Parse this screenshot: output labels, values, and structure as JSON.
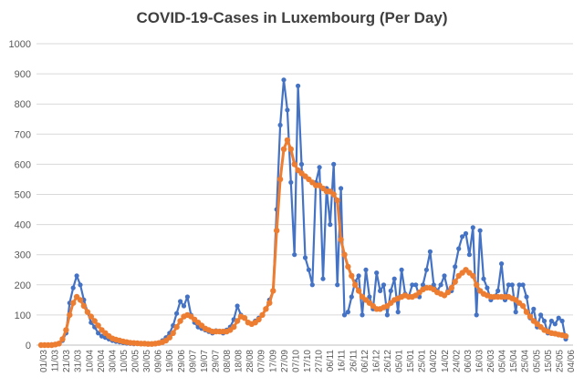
{
  "chart_data": {
    "type": "line",
    "title": "COVID-19-Cases in Luxembourg (Per Day)",
    "xlabel": "",
    "ylabel": "",
    "ylim": [
      0,
      1000
    ],
    "y_ticks": [
      0,
      100,
      200,
      300,
      400,
      500,
      600,
      700,
      800,
      900,
      1000
    ],
    "x_tick_labels": [
      "01/03",
      "11/03",
      "21/03",
      "31/03",
      "10/04",
      "20/04",
      "30/04",
      "10/05",
      "20/05",
      "30/05",
      "09/06",
      "19/06",
      "29/06",
      "09/07",
      "19/07",
      "29/07",
      "08/08",
      "18/08",
      "28/08",
      "07/09",
      "17/09",
      "27/09",
      "07/10",
      "17/10",
      "27/10",
      "06/11",
      "16/11",
      "26/11",
      "06/12",
      "16/12",
      "26/12",
      "05/01",
      "15/01",
      "25/01",
      "04/02",
      "14/02",
      "24/02",
      "06/03",
      "16/03",
      "26/03",
      "05/04",
      "15/04",
      "25/04",
      "05/05",
      "15/05",
      "25/05",
      "04/06"
    ],
    "grid": true,
    "series": [
      {
        "color": "#4472C4",
        "values": [
          0,
          0,
          0,
          2,
          3,
          5,
          15,
          40,
          140,
          190,
          230,
          200,
          150,
          110,
          75,
          60,
          40,
          30,
          25,
          20,
          15,
          12,
          10,
          8,
          6,
          5,
          4,
          5,
          5,
          4,
          4,
          4,
          5,
          8,
          15,
          25,
          40,
          65,
          105,
          145,
          130,
          160,
          100,
          75,
          60,
          55,
          50,
          45,
          40,
          48,
          45,
          40,
          50,
          60,
          85,
          130,
          100,
          90,
          75,
          70,
          80,
          90,
          100,
          120,
          150,
          180,
          450,
          730,
          880,
          780,
          540,
          300,
          860,
          600,
          290,
          250,
          200,
          540,
          590,
          220,
          520,
          400,
          600,
          200,
          520,
          100,
          110,
          160,
          210,
          230,
          100,
          250,
          160,
          120,
          240,
          180,
          200,
          100,
          180,
          220,
          110,
          250,
          170,
          160,
          200,
          200,
          160,
          200,
          250,
          310,
          200,
          180,
          200,
          230,
          180,
          180,
          260,
          320,
          360,
          370,
          300,
          390,
          100,
          380,
          220,
          190,
          150,
          160,
          180,
          270,
          150,
          200,
          200,
          110,
          200,
          200,
          160,
          90,
          120,
          60,
          100,
          80,
          40,
          80,
          70,
          90,
          80,
          20
        ]
      },
      {
        "color": "#ED7D31",
        "values": [
          0,
          0,
          0,
          0,
          2,
          5,
          20,
          50,
          100,
          140,
          160,
          150,
          130,
          110,
          95,
          80,
          65,
          50,
          40,
          30,
          22,
          18,
          15,
          12,
          10,
          8,
          7,
          6,
          5,
          5,
          4,
          4,
          5,
          7,
          10,
          15,
          25,
          40,
          60,
          80,
          95,
          100,
          95,
          85,
          75,
          65,
          55,
          50,
          45,
          45,
          45,
          45,
          45,
          50,
          60,
          80,
          95,
          90,
          75,
          70,
          75,
          85,
          100,
          120,
          140,
          180,
          380,
          550,
          650,
          680,
          650,
          600,
          580,
          570,
          560,
          550,
          540,
          530,
          530,
          520,
          510,
          510,
          500,
          480,
          350,
          300,
          260,
          230,
          200,
          180,
          160,
          150,
          140,
          130,
          120,
          120,
          125,
          130,
          140,
          150,
          155,
          160,
          165,
          160,
          160,
          165,
          175,
          185,
          190,
          190,
          185,
          175,
          170,
          165,
          175,
          190,
          210,
          230,
          240,
          250,
          240,
          230,
          200,
          180,
          170,
          165,
          160,
          160,
          160,
          160,
          160,
          160,
          155,
          150,
          140,
          130,
          110,
          95,
          80,
          70,
          60,
          50,
          45,
          40,
          38,
          35,
          33,
          30
        ]
      }
    ]
  }
}
